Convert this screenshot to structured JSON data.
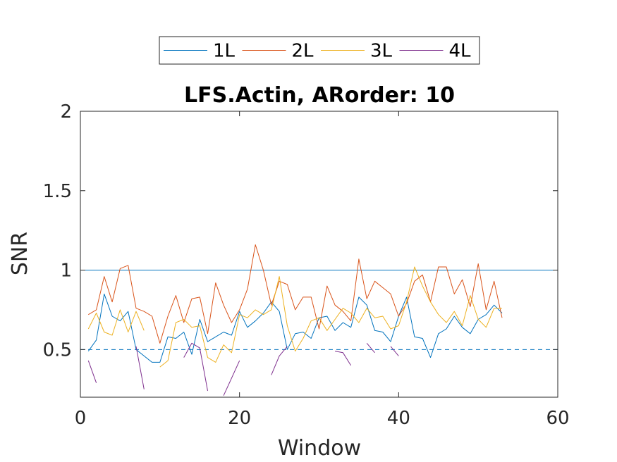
{
  "chart_data": {
    "type": "line",
    "title": "LFS.Actin, ARorder: 10",
    "xlabel": "Window",
    "ylabel": "SNR",
    "xlim": [
      0,
      60
    ],
    "ylim": [
      0.2,
      2
    ],
    "xticks": [
      0,
      20,
      40,
      60
    ],
    "yticks": [
      0.5,
      1,
      1.5,
      2
    ],
    "xtick_labels": [
      "0",
      "20",
      "40",
      "60"
    ],
    "ytick_labels": [
      "0.5",
      "1",
      "1.5",
      "2"
    ],
    "grid": false,
    "legend": {
      "placement": "top-center",
      "orientation": "horizontal"
    },
    "colors": {
      "1L": "#0072BD",
      "2L": "#D95319",
      "3L": "#EDB120",
      "4L": "#7E2F8E"
    },
    "reference_lines": [
      {
        "y": 1.0,
        "style": "solid",
        "color": "#0072BD"
      },
      {
        "y": 0.5,
        "style": "dashed",
        "color": "#0072BD"
      },
      {
        "y": 2.0,
        "style": "dashed",
        "color": "#0072BD"
      }
    ],
    "x": [
      1,
      2,
      3,
      4,
      5,
      6,
      7,
      8,
      9,
      10,
      11,
      12,
      13,
      14,
      15,
      16,
      17,
      18,
      19,
      20,
      21,
      22,
      23,
      24,
      25,
      26,
      27,
      28,
      29,
      30,
      31,
      32,
      33,
      34,
      35,
      36,
      37,
      38,
      39,
      40,
      41,
      42,
      43,
      44,
      45,
      46,
      47,
      48,
      49,
      50,
      51,
      52,
      53
    ],
    "series": [
      {
        "name": "1L",
        "values": [
          0.49,
          0.56,
          0.85,
          0.71,
          0.68,
          0.74,
          0.5,
          0.46,
          0.42,
          0.42,
          0.58,
          0.57,
          0.61,
          0.47,
          0.69,
          0.55,
          0.58,
          0.61,
          0.59,
          0.74,
          0.64,
          0.68,
          0.73,
          0.8,
          0.74,
          0.5,
          0.6,
          0.61,
          0.57,
          0.7,
          0.71,
          0.62,
          0.67,
          0.64,
          0.83,
          0.78,
          0.62,
          0.61,
          0.55,
          0.71,
          0.83,
          0.58,
          0.57,
          0.45,
          0.6,
          0.63,
          0.71,
          0.64,
          0.6,
          0.69,
          0.72,
          0.78,
          0.73
        ]
      },
      {
        "name": "2L",
        "values": [
          0.72,
          0.75,
          0.96,
          0.8,
          1.01,
          1.03,
          0.76,
          0.74,
          0.71,
          0.54,
          0.71,
          0.84,
          0.67,
          0.82,
          0.83,
          0.6,
          0.92,
          0.78,
          0.67,
          0.75,
          0.88,
          1.16,
          1.0,
          0.78,
          0.93,
          0.91,
          0.75,
          0.83,
          0.83,
          0.63,
          0.9,
          0.78,
          0.74,
          0.68,
          1.07,
          0.82,
          0.93,
          0.89,
          0.85,
          0.71,
          0.79,
          0.93,
          0.97,
          0.8,
          1.02,
          1.02,
          0.85,
          0.94,
          0.77,
          1.04,
          0.75,
          0.93,
          0.7
        ]
      },
      {
        "name": "3L",
        "values": [
          0.63,
          0.73,
          0.61,
          0.59,
          0.75,
          0.61,
          0.74,
          0.62,
          null,
          0.39,
          0.43,
          0.67,
          0.69,
          0.64,
          0.65,
          0.45,
          0.42,
          0.53,
          0.48,
          0.72,
          0.7,
          0.75,
          0.72,
          0.75,
          0.96,
          0.65,
          0.49,
          0.57,
          0.68,
          0.7,
          0.62,
          0.69,
          0.76,
          0.73,
          0.67,
          0.76,
          0.7,
          0.71,
          0.63,
          0.65,
          0.8,
          1.02,
          0.9,
          0.8,
          0.72,
          0.67,
          0.74,
          0.65,
          0.84,
          0.69,
          0.64,
          0.76,
          0.76
        ]
      },
      {
        "name": "4L",
        "values": [
          0.43,
          0.29,
          null,
          null,
          null,
          null,
          0.52,
          0.25,
          null,
          null,
          null,
          null,
          0.45,
          0.54,
          0.51,
          0.24,
          null,
          0.21,
          0.32,
          0.43,
          null,
          null,
          null,
          0.34,
          0.46,
          0.52,
          null,
          null,
          null,
          null,
          null,
          0.49,
          0.48,
          0.4,
          null,
          0.54,
          0.48,
          null,
          0.52,
          0.46,
          null,
          null,
          null,
          null,
          null,
          null,
          null,
          null,
          null,
          null,
          null,
          null,
          null
        ]
      }
    ]
  }
}
